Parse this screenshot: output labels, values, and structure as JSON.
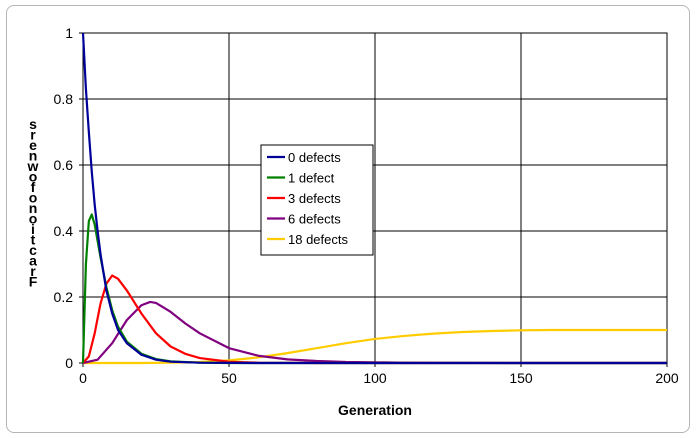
{
  "chart_data": {
    "type": "line",
    "title": "",
    "xlabel": "Generation",
    "ylabel": "Fraction of owners",
    "xlim": [
      0,
      200
    ],
    "ylim": [
      0,
      1
    ],
    "xticks": [
      "0",
      "50",
      "100",
      "150",
      "200"
    ],
    "yticks": [
      "0",
      "0.2",
      "0.4",
      "0.6",
      "0.8",
      "1"
    ],
    "grid": true,
    "legend_position": "center",
    "series": [
      {
        "name": "0 defects",
        "color": "#000099",
        "x": [
          0,
          1,
          2,
          3,
          4,
          5,
          6,
          8,
          10,
          12,
          15,
          20,
          25,
          30,
          40,
          60,
          100,
          200
        ],
        "y": [
          1.0,
          0.83,
          0.7,
          0.58,
          0.48,
          0.4,
          0.33,
          0.22,
          0.15,
          0.1,
          0.06,
          0.025,
          0.01,
          0.004,
          0.001,
          0,
          0,
          0
        ]
      },
      {
        "name": "1 defect",
        "color": "#008000",
        "x": [
          0,
          1,
          2,
          3,
          4,
          5,
          6,
          8,
          10,
          12,
          15,
          20,
          25,
          30,
          40,
          50,
          100,
          200
        ],
        "y": [
          0,
          0.3,
          0.43,
          0.45,
          0.42,
          0.37,
          0.32,
          0.23,
          0.16,
          0.11,
          0.065,
          0.028,
          0.012,
          0.005,
          0.001,
          0,
          0,
          0
        ]
      },
      {
        "name": "3 defects",
        "color": "#ff0000",
        "x": [
          0,
          2,
          4,
          6,
          8,
          10,
          12,
          15,
          20,
          25,
          30,
          35,
          40,
          50,
          60,
          80,
          100,
          200
        ],
        "y": [
          0,
          0.02,
          0.09,
          0.18,
          0.24,
          0.265,
          0.255,
          0.22,
          0.15,
          0.09,
          0.05,
          0.028,
          0.015,
          0.004,
          0.001,
          0,
          0,
          0
        ]
      },
      {
        "name": "6 defects",
        "color": "#800080",
        "x": [
          0,
          5,
          10,
          15,
          20,
          23,
          25,
          30,
          35,
          40,
          50,
          60,
          70,
          80,
          90,
          100,
          110,
          150,
          200
        ],
        "y": [
          0,
          0.01,
          0.06,
          0.13,
          0.175,
          0.185,
          0.182,
          0.155,
          0.12,
          0.09,
          0.045,
          0.022,
          0.011,
          0.006,
          0.003,
          0.002,
          0.001,
          0,
          0
        ]
      },
      {
        "name": "18 defects",
        "color": "#ffcc00",
        "x": [
          0,
          20,
          30,
          40,
          50,
          60,
          70,
          80,
          90,
          100,
          110,
          120,
          130,
          140,
          150,
          160,
          170,
          180,
          190,
          200
        ],
        "y": [
          0,
          0,
          0.001,
          0.003,
          0.008,
          0.017,
          0.03,
          0.045,
          0.06,
          0.073,
          0.082,
          0.089,
          0.094,
          0.097,
          0.099,
          0.1,
          0.1,
          0.1,
          0.1,
          0.1
        ]
      }
    ]
  }
}
